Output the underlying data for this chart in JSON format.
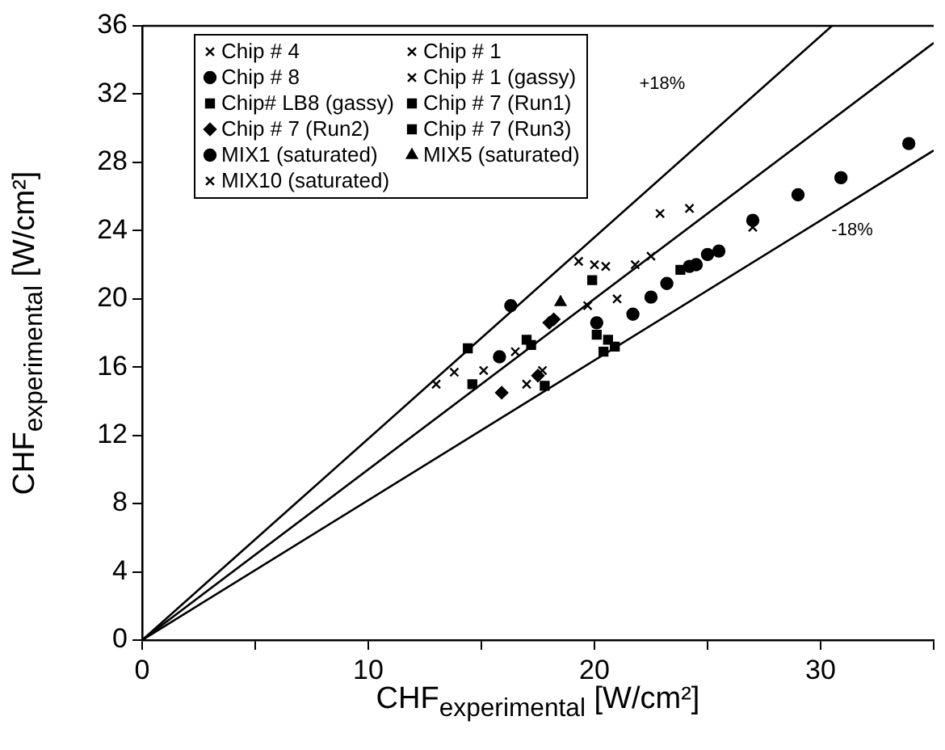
{
  "chart_data": {
    "type": "scatter",
    "xlabel": "CHF$_{experimental}$ [W/cm²]",
    "ylabel": "CHF$_{experimental}$ [W/cm²]",
    "xlim": [
      0,
      35
    ],
    "xticks": [
      0,
      {
        "value": 5,
        "label": null
      },
      10,
      {
        "value": 15,
        "label": null
      },
      20,
      {
        "value": 25,
        "label": null
      },
      30,
      {
        "value": 35,
        "label": null
      }
    ],
    "ylim": [
      0,
      36
    ],
    "yticks": [
      0,
      4,
      8,
      12,
      16,
      20,
      24,
      28,
      32,
      36
    ],
    "grid": false,
    "legend": "top left",
    "annotations": [
      "+18%",
      "-18%"
    ],
    "series": [
      {
        "name": "Chip # 4",
        "color": "#000000",
        "marker": "cross",
        "x": [
          13.0,
          13.8,
          17.7,
          20.0,
          20.5,
          22.9,
          24.2
        ],
        "values": [
          15.0,
          15.7,
          15.8,
          22.0,
          21.9,
          25.0,
          25.3
        ]
      },
      {
        "name": "Chip # 1",
        "color": "#000000",
        "marker": "cross",
        "x": [
          15.1,
          19.3,
          21.8,
          22.5
        ],
        "values": [
          15.8,
          22.2,
          22.0,
          22.5
        ]
      },
      {
        "name": "Chip # 8",
        "color": "#000000",
        "marker": "circle",
        "x": [
          15.8,
          20.1,
          21.7,
          22.5,
          23.2,
          24.2,
          24.5,
          25.0,
          25.5,
          27.0,
          29.0,
          30.9,
          33.9
        ],
        "values": [
          16.6,
          18.6,
          19.1,
          20.1,
          20.9,
          21.9,
          22.0,
          22.6,
          22.8,
          24.6,
          26.1,
          27.1,
          29.1
        ]
      },
      {
        "name": "Chip # 1 (gassy)",
        "color": "#000000",
        "marker": "cross",
        "x": [
          17.0,
          21.0
        ],
        "values": [
          15.0,
          20.0
        ]
      },
      {
        "name": "Chip# LB8 (gassy)",
        "color": "#000000",
        "marker": "square",
        "x": [
          14.4,
          19.9,
          23.8
        ],
        "values": [
          17.1,
          21.1,
          21.7
        ]
      },
      {
        "name": "Chip # 7 (Run1)",
        "color": "#000000",
        "marker": "square",
        "x": [
          14.6,
          17.0,
          17.2
        ],
        "values": [
          15.0,
          17.6,
          17.3
        ]
      },
      {
        "name": "Chip # 7 (Run2)",
        "color": "#000000",
        "marker": "diamond",
        "x": [
          15.9,
          17.5,
          18.0,
          18.2
        ],
        "values": [
          14.5,
          15.5,
          18.6,
          18.8
        ]
      },
      {
        "name": "Chip # 7 (Run3)",
        "color": "#000000",
        "marker": "square",
        "x": [
          17.8,
          20.1,
          20.6,
          20.9,
          20.4
        ],
        "values": [
          14.9,
          17.9,
          17.6,
          17.2,
          16.9
        ]
      },
      {
        "name": "MIX1 (saturated)",
        "color": "#000000",
        "marker": "circle",
        "x": [
          16.3
        ],
        "values": [
          19.6
        ]
      },
      {
        "name": "MIX5 (saturated)",
        "color": "#000000",
        "marker": "triangle",
        "x": [
          18.5
        ],
        "values": [
          19.8
        ]
      },
      {
        "name": "MIX10 (saturated)",
        "color": "#000000",
        "marker": "cross",
        "x": [
          16.5,
          19.7,
          27.0
        ],
        "values": [
          16.9,
          19.6,
          24.2
        ]
      },
      {
        "type": "line",
        "color": "#000000",
        "marker": "none",
        "x": [
          0,
          30.5
        ],
        "values": [
          0,
          36
        ]
      },
      {
        "type": "line",
        "color": "#000000",
        "marker": "none",
        "x": [
          0,
          35
        ],
        "values": [
          0,
          35
        ]
      },
      {
        "type": "line",
        "color": "#000000",
        "marker": "none",
        "x": [
          0,
          35
        ],
        "values": [
          0,
          28.7
        ]
      }
    ]
  }
}
